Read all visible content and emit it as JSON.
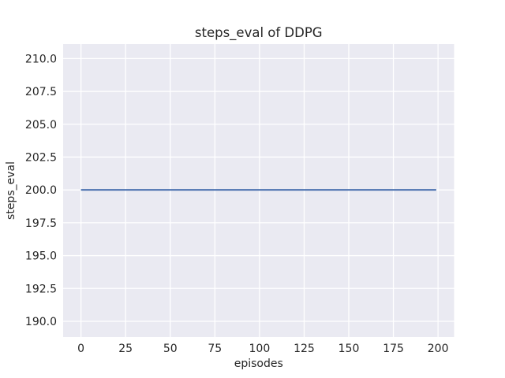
{
  "chart_data": {
    "type": "line",
    "title": "steps_eval of DDPG",
    "xlabel": "episodes",
    "ylabel": "steps_eval",
    "xlim": [
      -10,
      209
    ],
    "ylim": [
      188.8,
      211.1
    ],
    "xticks": [
      0,
      25,
      50,
      75,
      100,
      125,
      150,
      175,
      200
    ],
    "xtick_labels": [
      "0",
      "25",
      "50",
      "75",
      "100",
      "125",
      "150",
      "175",
      "200"
    ],
    "yticks": [
      190.0,
      192.5,
      195.0,
      197.5,
      200.0,
      202.5,
      205.0,
      207.5,
      210.0
    ],
    "ytick_labels": [
      "190.0",
      "192.5",
      "195.0",
      "197.5",
      "200.0",
      "202.5",
      "205.0",
      "207.5",
      "210.0"
    ],
    "grid": true,
    "legend": "none",
    "series": [
      {
        "name": "steps_eval",
        "color": "#4c72b0",
        "x": [
          0,
          199
        ],
        "y": [
          200.0,
          200.0
        ]
      }
    ],
    "colors": {
      "figure_bg": "#ffffff",
      "plot_bg": "#eaeaf2",
      "grid": "#ffffff",
      "text": "#262626"
    }
  }
}
